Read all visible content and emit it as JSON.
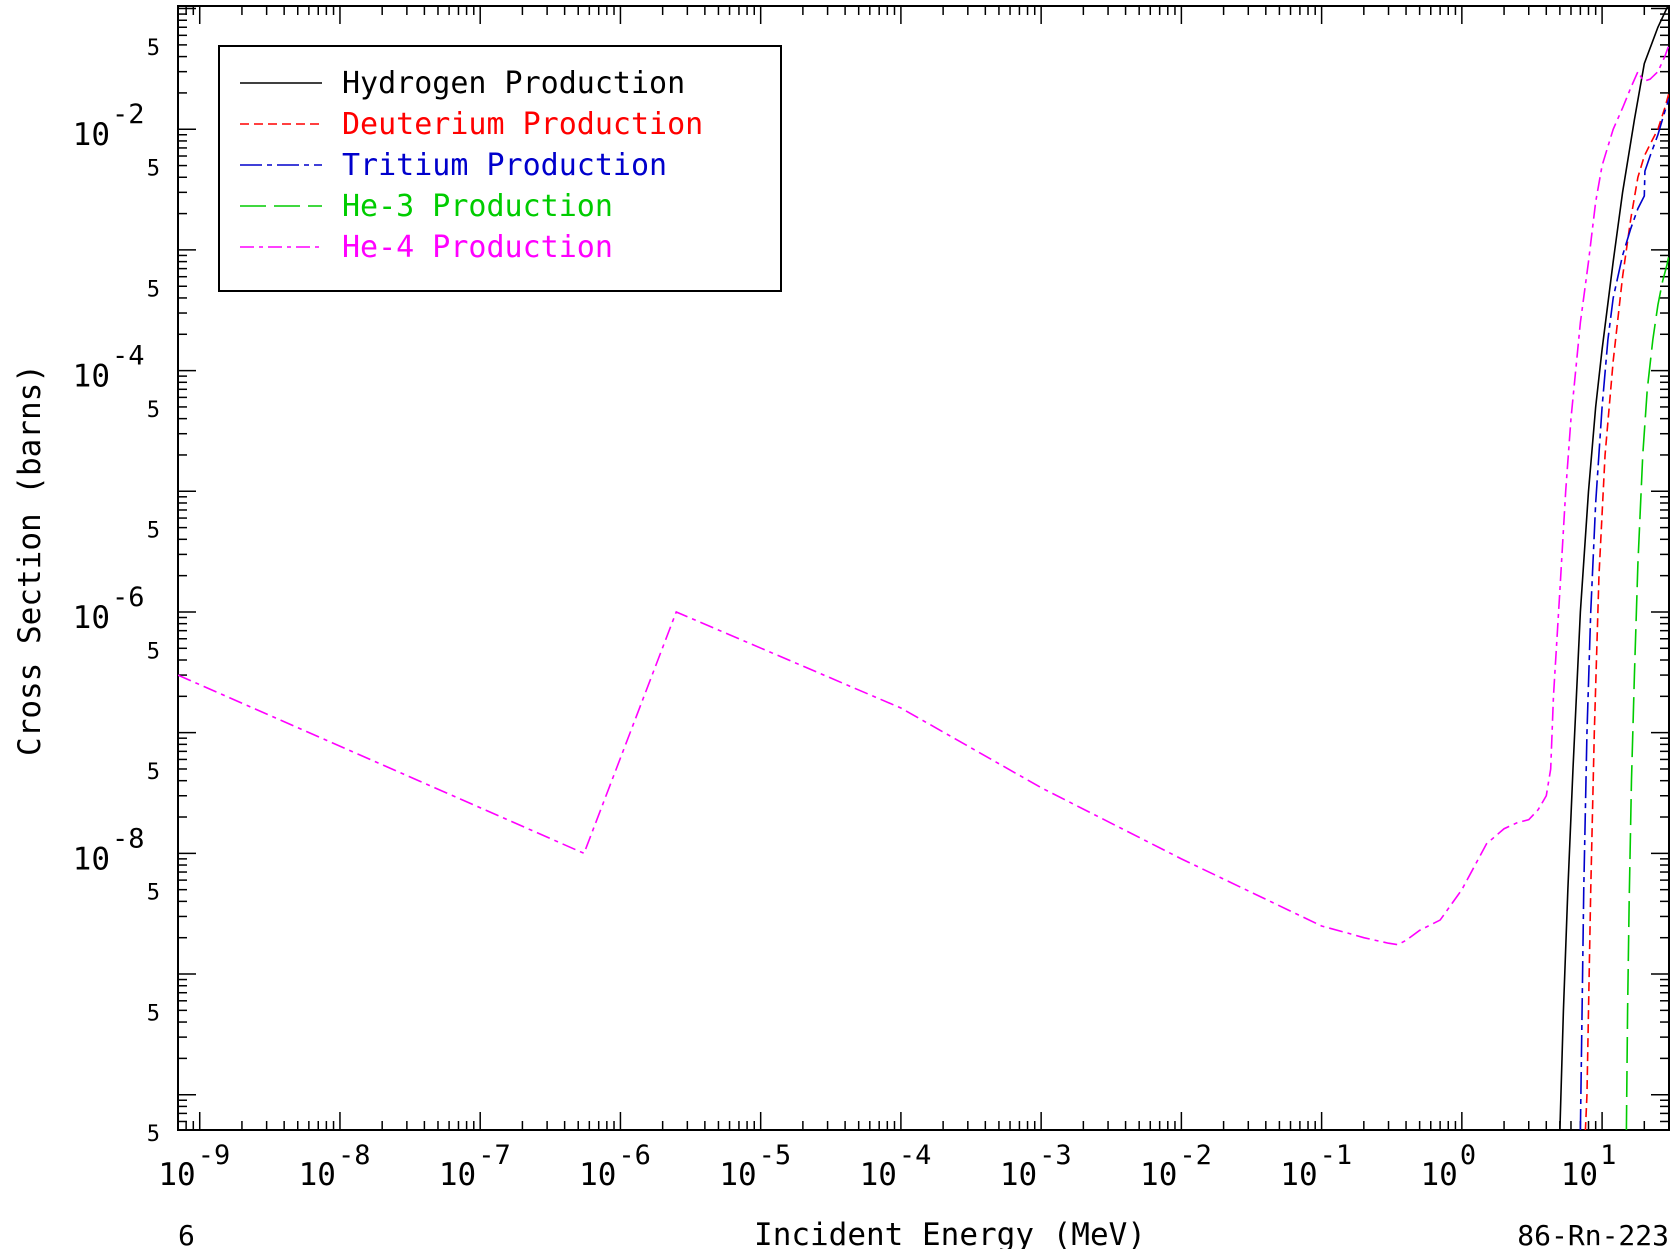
{
  "chart_data": {
    "type": "line",
    "x_scale": "log",
    "y_scale": "log",
    "xlim": [
      7e-10,
      30
    ],
    "ylim": [
      5.1e-11,
      0.105
    ],
    "xlabel": "Incident Energy (MeV)",
    "ylabel": "Cross Section (barns)",
    "corner_left": "6",
    "corner_right": "86-Rn-223",
    "grid": false,
    "legend_position": "top-left",
    "x_ticks": [
      {
        "value": 1e-09,
        "base": "10",
        "exp": "-9"
      },
      {
        "value": 1e-08,
        "base": "10",
        "exp": "-8"
      },
      {
        "value": 1e-07,
        "base": "10",
        "exp": "-7"
      },
      {
        "value": 1e-06,
        "base": "10",
        "exp": "-6"
      },
      {
        "value": 1e-05,
        "base": "10",
        "exp": "-5"
      },
      {
        "value": 0.0001,
        "base": "10",
        "exp": "-4"
      },
      {
        "value": 0.001,
        "base": "10",
        "exp": "-3"
      },
      {
        "value": 0.01,
        "base": "10",
        "exp": "-2"
      },
      {
        "value": 0.1,
        "base": "10",
        "exp": "-1"
      },
      {
        "value": 1,
        "base": "10",
        "exp": "0"
      },
      {
        "value": 10,
        "base": "10",
        "exp": "1"
      }
    ],
    "y_ticks_major": [
      {
        "value": 0.01,
        "base": "10",
        "exp": "-2"
      },
      {
        "value": 0.0001,
        "base": "10",
        "exp": "-4"
      },
      {
        "value": 1e-06,
        "base": "10",
        "exp": "-6"
      },
      {
        "value": 1e-08,
        "base": "10",
        "exp": "-8"
      }
    ],
    "y_ticks_minor": [
      {
        "value": 0.05,
        "label": "5"
      },
      {
        "value": 0.005,
        "label": "5"
      },
      {
        "value": 0.0005,
        "label": "5"
      },
      {
        "value": 5e-05,
        "label": "5"
      },
      {
        "value": 5e-06,
        "label": "5"
      },
      {
        "value": 5e-07,
        "label": "5"
      },
      {
        "value": 5e-08,
        "label": "5"
      },
      {
        "value": 5e-09,
        "label": "5"
      },
      {
        "value": 5e-10,
        "label": "5"
      },
      {
        "value": 5e-11,
        "label": "5"
      }
    ],
    "series": [
      {
        "name": "Hydrogen Production",
        "color": "#000000",
        "dash": "",
        "x": [
          5.0,
          5.3,
          5.7,
          6.2,
          7.0,
          8.0,
          9.0,
          10,
          12,
          14,
          17,
          20,
          25,
          30
        ],
        "y": [
          5e-11,
          5e-10,
          5e-09,
          5e-08,
          1e-06,
          1e-05,
          5e-05,
          0.00015,
          0.0008,
          0.003,
          0.012,
          0.035,
          0.07,
          0.11
        ]
      },
      {
        "name": "Deuterium Production",
        "color": "#ff0000",
        "dash": "9,5",
        "x": [
          7.6,
          7.8,
          8.0,
          8.3,
          8.8,
          9.5,
          10.5,
          12,
          14,
          16,
          18,
          20,
          22,
          25,
          28,
          30
        ],
        "y": [
          5e-11,
          1e-10,
          5e-10,
          5e-09,
          1e-07,
          2e-06,
          2e-05,
          0.00012,
          0.0006,
          0.0018,
          0.004,
          0.006,
          0.0075,
          0.01,
          0.015,
          0.02
        ]
      },
      {
        "name": "Tritium Production",
        "color": "#0000cc",
        "dash": "22,5,5,5",
        "x": [
          7.0,
          7.2,
          7.4,
          7.8,
          8.3,
          9.0,
          10,
          11,
          12,
          14,
          16,
          18,
          20,
          20.2,
          22,
          25,
          28,
          30
        ],
        "y": [
          5e-11,
          5e-10,
          5e-09,
          1e-07,
          1e-06,
          8e-06,
          5e-05,
          0.00018,
          0.0004,
          0.0009,
          0.0015,
          0.0022,
          0.0028,
          0.0045,
          0.006,
          0.009,
          0.014,
          0.018
        ]
      },
      {
        "name": "He-3 Production",
        "color": "#00cc00",
        "dash": "26,8",
        "x": [
          14.9,
          15.2,
          15.6,
          16.2,
          17,
          18,
          19.5,
          21,
          23,
          25,
          27,
          29,
          30
        ],
        "y": [
          5e-11,
          5e-10,
          4e-09,
          4e-08,
          3e-07,
          2.5e-06,
          2e-05,
          7e-05,
          0.00018,
          0.00035,
          0.00055,
          0.00075,
          0.0009
        ]
      },
      {
        "name": "He-4 Production",
        "color": "#ff00ff",
        "dash": "14,5,4,5",
        "x": [
          7e-10,
          5.5e-07,
          2.5e-06,
          0.0001,
          0.001,
          0.01,
          0.1,
          0.15,
          0.2,
          0.3,
          0.35,
          0.4,
          0.5,
          0.7,
          1.0,
          1.5,
          2.0,
          2.5,
          3.0,
          3.5,
          4.0,
          4.3,
          4.5,
          5.0,
          5.5,
          6.0,
          7.0,
          8.0,
          9.0,
          10,
          12,
          14,
          16,
          18,
          19,
          20,
          22,
          25,
          28,
          30
        ],
        "y": [
          3e-07,
          1e-08,
          1e-06,
          1.6e-07,
          3.5e-08,
          9e-09,
          2.5e-09,
          2.2e-09,
          2e-09,
          1.8e-09,
          1.75e-09,
          1.9e-09,
          2.3e-09,
          2.8e-09,
          5e-09,
          1.2e-08,
          1.6e-08,
          1.8e-08,
          1.9e-08,
          2.3e-08,
          3e-08,
          5e-08,
          2e-07,
          1.5e-06,
          1e-05,
          4e-05,
          0.00025,
          0.0008,
          0.0025,
          0.005,
          0.01,
          0.015,
          0.022,
          0.03,
          0.027,
          0.025,
          0.026,
          0.03,
          0.04,
          0.05
        ]
      }
    ]
  }
}
